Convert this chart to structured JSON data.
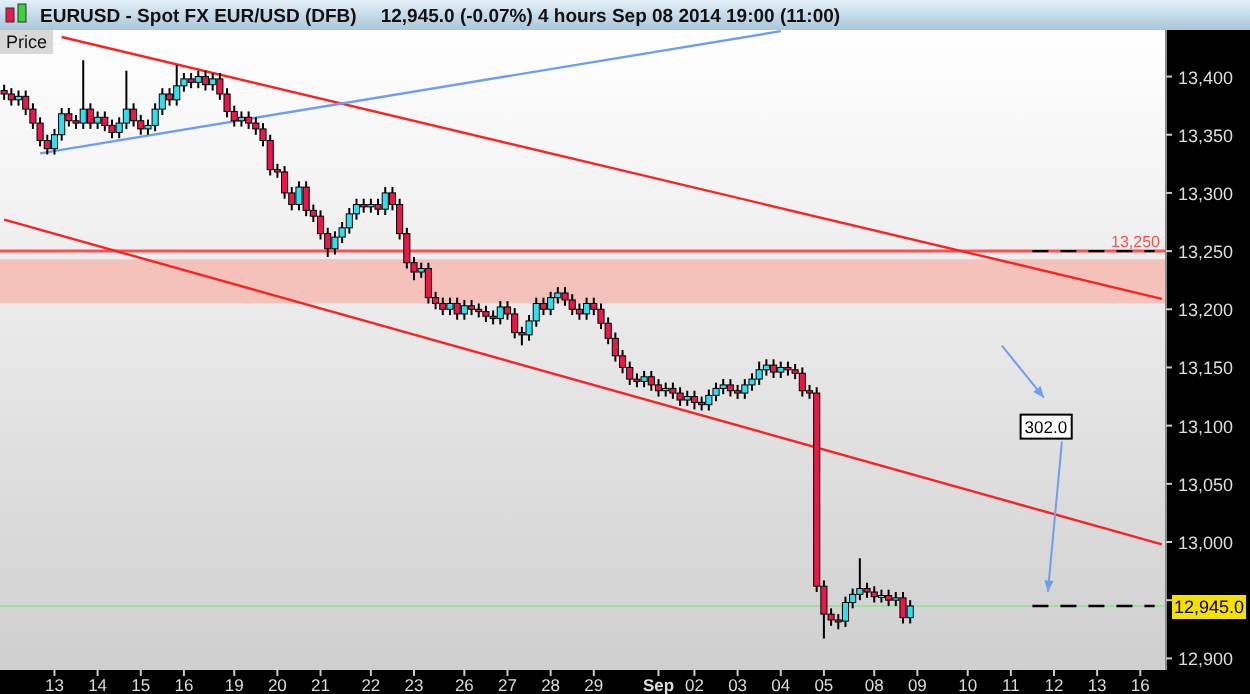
{
  "chart_data": {
    "type": "candlestick",
    "title": "EURUSD - Spot FX EUR/USD (DFB)",
    "subtitle": "12,945.0 (-0.07%)    4 hours   Sep 08 2014 19:00 (11:00)",
    "categories": [
      null,
      null,
      null,
      null,
      null,
      null,
      null,
      "13",
      null,
      null,
      null,
      null,
      null,
      "14",
      null,
      null,
      null,
      null,
      null,
      "15",
      null,
      null,
      null,
      null,
      null,
      "16",
      null,
      null,
      null,
      null,
      null,
      null,
      "19",
      null,
      null,
      null,
      null,
      null,
      "20",
      null,
      null,
      null,
      null,
      null,
      "21",
      null,
      null,
      null,
      null,
      null,
      null,
      "22",
      null,
      null,
      null,
      null,
      null,
      "23",
      null,
      null,
      null,
      null,
      null,
      null,
      "26",
      null,
      null,
      null,
      null,
      null,
      "27",
      null,
      null,
      null,
      null,
      null,
      "28",
      null,
      null,
      null,
      null,
      null,
      "29",
      null,
      null,
      null,
      null,
      null,
      null,
      null,
      null,
      "Sep",
      null,
      null,
      null,
      null,
      "02",
      null,
      null,
      null,
      null,
      null,
      "03",
      null,
      null,
      null,
      null,
      null,
      "04",
      null,
      null,
      null,
      null,
      null,
      "05",
      null,
      null,
      null,
      null,
      null,
      null,
      "08",
      null,
      null,
      null,
      null,
      null,
      "09",
      null,
      null,
      null,
      null,
      null,
      null,
      "10",
      null,
      null,
      null,
      null,
      null,
      "11",
      null,
      null,
      null,
      null,
      null,
      "12",
      null,
      null,
      null,
      null,
      null,
      "13",
      null,
      null,
      null,
      null,
      null,
      "16",
      null,
      null,
      null
    ],
    "ohlc": [
      [
        13388,
        13393,
        13380,
        13385
      ],
      [
        13385,
        13390,
        13375,
        13380
      ],
      [
        13380,
        13388,
        13375,
        13383
      ],
      [
        13383,
        13388,
        13367,
        13372
      ],
      [
        13372,
        13377,
        13355,
        13360
      ],
      [
        13360,
        13365,
        13340,
        13345
      ],
      [
        13345,
        13350,
        13333,
        13338
      ],
      [
        13338,
        13355,
        13333,
        13350
      ],
      [
        13350,
        13373,
        13345,
        13368
      ],
      [
        13368,
        13373,
        13357,
        13362
      ],
      [
        13362,
        13367,
        13355,
        13360
      ],
      [
        13360,
        13414,
        13355,
        13372
      ],
      [
        13372,
        13377,
        13355,
        13360
      ],
      [
        13360,
        13370,
        13355,
        13365
      ],
      [
        13365,
        13370,
        13353,
        13358
      ],
      [
        13358,
        13363,
        13347,
        13352
      ],
      [
        13352,
        13365,
        13347,
        13360
      ],
      [
        13360,
        13405,
        13355,
        13372
      ],
      [
        13372,
        13377,
        13357,
        13362
      ],
      [
        13362,
        13367,
        13350,
        13355
      ],
      [
        13355,
        13363,
        13350,
        13358
      ],
      [
        13358,
        13377,
        13353,
        13372
      ],
      [
        13372,
        13390,
        13367,
        13385
      ],
      [
        13385,
        13390,
        13375,
        13380
      ],
      [
        13380,
        13410,
        13375,
        13392
      ],
      [
        13392,
        13403,
        13387,
        13398
      ],
      [
        13398,
        13403,
        13390,
        13395
      ],
      [
        13395,
        13405,
        13390,
        13400
      ],
      [
        13400,
        13405,
        13388,
        13393
      ],
      [
        13393,
        13403,
        13388,
        13398
      ],
      [
        13398,
        13403,
        13380,
        13385
      ],
      [
        13385,
        13390,
        13365,
        13370
      ],
      [
        13370,
        13375,
        13357,
        13362
      ],
      [
        13362,
        13370,
        13357,
        13365
      ],
      [
        13365,
        13370,
        13355,
        13360
      ],
      [
        13360,
        13365,
        13350,
        13355
      ],
      [
        13355,
        13360,
        13340,
        13345
      ],
      [
        13345,
        13350,
        13315,
        13320
      ],
      [
        13320,
        13325,
        13313,
        13318
      ],
      [
        13318,
        13323,
        13295,
        13300
      ],
      [
        13300,
        13305,
        13285,
        13290
      ],
      [
        13290,
        13310,
        13285,
        13305
      ],
      [
        13305,
        13310,
        13280,
        13285
      ],
      [
        13285,
        13290,
        13275,
        13280
      ],
      [
        13280,
        13285,
        13260,
        13265
      ],
      [
        13265,
        13270,
        13245,
        13252
      ],
      [
        13252,
        13267,
        13247,
        13262
      ],
      [
        13262,
        13275,
        13257,
        13270
      ],
      [
        13270,
        13287,
        13265,
        13282
      ],
      [
        13282,
        13295,
        13277,
        13290
      ],
      [
        13290,
        13295,
        13283,
        13288
      ],
      [
        13288,
        13295,
        13283,
        13290
      ],
      [
        13290,
        13295,
        13281,
        13286
      ],
      [
        13286,
        13305,
        13281,
        13300
      ],
      [
        13300,
        13305,
        13285,
        13290
      ],
      [
        13290,
        13295,
        13260,
        13265
      ],
      [
        13265,
        13270,
        13235,
        13240
      ],
      [
        13240,
        13245,
        13225,
        13232
      ],
      [
        13232,
        13240,
        13227,
        13235
      ],
      [
        13235,
        13240,
        13205,
        13210
      ],
      [
        13210,
        13215,
        13200,
        13205
      ],
      [
        13205,
        13210,
        13195,
        13200
      ],
      [
        13200,
        13210,
        13195,
        13205
      ],
      [
        13205,
        13210,
        13191,
        13196
      ],
      [
        13196,
        13208,
        13191,
        13203
      ],
      [
        13203,
        13208,
        13195,
        13200
      ],
      [
        13200,
        13205,
        13193,
        13198
      ],
      [
        13198,
        13203,
        13189,
        13194
      ],
      [
        13194,
        13199,
        13187,
        13192
      ],
      [
        13192,
        13207,
        13187,
        13202
      ],
      [
        13202,
        13207,
        13191,
        13196
      ],
      [
        13196,
        13201,
        13175,
        13180
      ],
      [
        13180,
        13185,
        13169,
        13178
      ],
      [
        13178,
        13195,
        13173,
        13190
      ],
      [
        13190,
        13210,
        13185,
        13205
      ],
      [
        13205,
        13210,
        13195,
        13200
      ],
      [
        13200,
        13215,
        13195,
        13210
      ],
      [
        13210,
        13219,
        13205,
        13214
      ],
      [
        13214,
        13219,
        13203,
        13208
      ],
      [
        13208,
        13213,
        13195,
        13200
      ],
      [
        13200,
        13205,
        13191,
        13196
      ],
      [
        13196,
        13210,
        13191,
        13205
      ],
      [
        13205,
        13210,
        13195,
        13200
      ],
      [
        13200,
        13205,
        13183,
        13188
      ],
      [
        13188,
        13193,
        13170,
        13175
      ],
      [
        13175,
        13180,
        13155,
        13160
      ],
      [
        13160,
        13165,
        13145,
        13150
      ],
      [
        13150,
        13155,
        13135,
        13140
      ],
      [
        13140,
        13145,
        13133,
        13138
      ],
      [
        13138,
        13147,
        13133,
        13142
      ],
      [
        13142,
        13147,
        13130,
        13135
      ],
      [
        13135,
        13140,
        13125,
        13130
      ],
      [
        13130,
        13137,
        13125,
        13132
      ],
      [
        13132,
        13137,
        13123,
        13128
      ],
      [
        13128,
        13133,
        13117,
        13122
      ],
      [
        13122,
        13130,
        13117,
        13125
      ],
      [
        13125,
        13130,
        13114,
        13120
      ],
      [
        13120,
        13125,
        13113,
        13118
      ],
      [
        13118,
        13131,
        13113,
        13126
      ],
      [
        13126,
        13137,
        13121,
        13132
      ],
      [
        13132,
        13140,
        13127,
        13135
      ],
      [
        13135,
        13140,
        13125,
        13130
      ],
      [
        13130,
        13135,
        13123,
        13128
      ],
      [
        13128,
        13140,
        13123,
        13135
      ],
      [
        13135,
        13145,
        13130,
        13140
      ],
      [
        13140,
        13155,
        13135,
        13148
      ],
      [
        13148,
        13157,
        13143,
        13152
      ],
      [
        13152,
        13157,
        13141,
        13146
      ],
      [
        13146,
        13155,
        13141,
        13150
      ],
      [
        13150,
        13155,
        13143,
        13148
      ],
      [
        13148,
        13153,
        13140,
        13145
      ],
      [
        13145,
        13150,
        13125,
        13130
      ],
      [
        13130,
        13135,
        13123,
        13128
      ],
      [
        13128,
        13133,
        12957,
        12962
      ],
      [
        12962,
        12967,
        12917,
        12938
      ],
      [
        12938,
        12943,
        12928,
        12933
      ],
      [
        12933,
        12938,
        12925,
        12932
      ],
      [
        12932,
        12953,
        12927,
        12948
      ],
      [
        12948,
        12960,
        12943,
        12955
      ],
      [
        12955,
        12986,
        12950,
        12960
      ],
      [
        12960,
        12965,
        12952,
        12957
      ],
      [
        12957,
        12962,
        12948,
        12953
      ],
      [
        12953,
        12959,
        12948,
        12954
      ],
      [
        12954,
        12959,
        12945,
        12950
      ],
      [
        12950,
        12957,
        12945,
        12952
      ],
      [
        12952,
        12957,
        12930,
        12935
      ],
      [
        12935,
        12950,
        12930,
        12945
      ],
      null,
      null,
      null,
      null,
      null,
      null,
      null,
      null,
      null,
      null,
      null,
      null,
      null,
      null,
      null,
      null,
      null,
      null,
      null,
      null,
      null,
      null,
      null,
      null,
      null,
      null,
      null,
      null,
      null,
      null,
      null,
      null,
      null,
      null,
      null
    ],
    "series": [
      {
        "type": "line",
        "color": "#ff2020",
        "values": [
          null,
          null,
          null,
          null,
          null,
          null,
          null,
          null,
          13434,
          null,
          null,
          null,
          null,
          null,
          null,
          null,
          null,
          null,
          null,
          null,
          null,
          null,
          null,
          null,
          null,
          null,
          null,
          null,
          null,
          null,
          null,
          null,
          null,
          null,
          null,
          null,
          null,
          null,
          null,
          null,
          null,
          null,
          null,
          null,
          null,
          null,
          null,
          null,
          null,
          null,
          null,
          null,
          null,
          null,
          null,
          null,
          null,
          null,
          null,
          null,
          null,
          null,
          null,
          null,
          null,
          null,
          null,
          null,
          null,
          null,
          null,
          null,
          null,
          null,
          null,
          null,
          null,
          null,
          null,
          null,
          null,
          null,
          null,
          null,
          null,
          null,
          null,
          null,
          null,
          null,
          null,
          null,
          null,
          null,
          null,
          null,
          null,
          null,
          null,
          null,
          null,
          null,
          null,
          null,
          null,
          null,
          null,
          null,
          null,
          null,
          null,
          null,
          null,
          null,
          null,
          null,
          null,
          null,
          null,
          null,
          null,
          null,
          null,
          null,
          null,
          null,
          null,
          null,
          null,
          null,
          null,
          null,
          null,
          null,
          null,
          null,
          null,
          null,
          null,
          null,
          null,
          null,
          null,
          null,
          null,
          null,
          null,
          null,
          null,
          null,
          null,
          null,
          null,
          null,
          null,
          null,
          null,
          null,
          null,
          null,
          null,
          13209
        ]
      },
      {
        "type": "line",
        "color": "#ff2020",
        "values": [
          13277,
          null,
          null,
          null,
          null,
          null,
          null,
          null,
          null,
          null,
          null,
          null,
          null,
          null,
          null,
          null,
          null,
          null,
          null,
          null,
          null,
          null,
          null,
          null,
          null,
          null,
          null,
          null,
          null,
          null,
          null,
          null,
          null,
          null,
          null,
          null,
          null,
          null,
          null,
          null,
          null,
          null,
          null,
          null,
          null,
          null,
          null,
          null,
          null,
          null,
          null,
          null,
          null,
          null,
          null,
          null,
          null,
          null,
          null,
          null,
          null,
          null,
          null,
          null,
          null,
          null,
          null,
          null,
          null,
          null,
          null,
          null,
          null,
          null,
          null,
          null,
          null,
          null,
          null,
          null,
          null,
          null,
          null,
          null,
          null,
          null,
          null,
          null,
          null,
          null,
          null,
          null,
          null,
          null,
          null,
          null,
          null,
          null,
          null,
          null,
          null,
          null,
          null,
          null,
          null,
          null,
          null,
          null,
          null,
          null,
          null,
          null,
          null,
          null,
          null,
          null,
          null,
          null,
          null,
          null,
          null,
          null,
          null,
          null,
          null,
          null,
          null,
          null,
          null,
          null,
          null,
          null,
          null,
          null,
          null,
          null,
          null,
          null,
          null,
          null,
          null,
          null,
          null,
          null,
          null,
          null,
          null,
          null,
          null,
          null,
          null,
          null,
          null,
          null,
          null,
          null,
          null,
          null,
          null,
          null,
          null,
          12998
        ]
      },
      {
        "type": "line",
        "color": "#6f9ef0",
        "values": [
          null,
          null,
          null,
          null,
          null,
          13334,
          null,
          null,
          null,
          null,
          null,
          null,
          null,
          null,
          null,
          null,
          null,
          null,
          null,
          null,
          null,
          null,
          null,
          null,
          null,
          null,
          null,
          null,
          null,
          null,
          null,
          null,
          null,
          null,
          null,
          null,
          null,
          null,
          null,
          null,
          null,
          null,
          null,
          null,
          null,
          null,
          null,
          null,
          null,
          null,
          null,
          null,
          null,
          null,
          null,
          null,
          null,
          null,
          null,
          null,
          null,
          null,
          null,
          null,
          null,
          null,
          null,
          null,
          null,
          null,
          null,
          null,
          null,
          null,
          null,
          null,
          null,
          null,
          null,
          null,
          null,
          null,
          null,
          null,
          null,
          null,
          null,
          null,
          null,
          null,
          null,
          null,
          null,
          null,
          null,
          null,
          null,
          null,
          null,
          null,
          null,
          null,
          null,
          null,
          null,
          null,
          null,
          null,
          13439,
          null,
          null,
          null,
          null,
          null,
          null,
          null,
          null,
          null,
          null,
          null,
          null,
          null,
          null,
          null,
          null,
          null,
          null,
          null,
          null,
          null,
          null,
          null,
          null,
          null,
          null,
          null,
          null,
          null,
          null,
          null,
          null,
          null,
          null,
          null,
          null,
          null,
          null,
          null,
          null,
          null,
          null,
          null,
          null,
          null,
          null,
          null,
          null,
          null,
          null,
          null,
          null,
          null
        ]
      },
      {
        "type": "line",
        "color": "#000000",
        "line_style": "dashed",
        "values": [
          null,
          null,
          null,
          null,
          null,
          null,
          null,
          null,
          null,
          null,
          null,
          null,
          null,
          null,
          null,
          null,
          null,
          null,
          null,
          null,
          null,
          null,
          null,
          null,
          null,
          null,
          null,
          null,
          null,
          null,
          null,
          null,
          null,
          null,
          null,
          null,
          null,
          null,
          null,
          null,
          null,
          null,
          null,
          null,
          null,
          null,
          null,
          null,
          null,
          null,
          null,
          null,
          null,
          null,
          null,
          null,
          null,
          null,
          null,
          null,
          null,
          null,
          null,
          null,
          null,
          null,
          null,
          null,
          null,
          null,
          null,
          null,
          null,
          null,
          null,
          null,
          null,
          null,
          null,
          null,
          null,
          null,
          null,
          null,
          null,
          null,
          null,
          null,
          null,
          null,
          null,
          null,
          null,
          null,
          null,
          null,
          null,
          null,
          null,
          null,
          null,
          null,
          null,
          null,
          null,
          null,
          null,
          null,
          null,
          null,
          null,
          null,
          null,
          null,
          null,
          null,
          null,
          null,
          null,
          null,
          null,
          null,
          null,
          null,
          null,
          null,
          null,
          null,
          null,
          null,
          null,
          null,
          null,
          null,
          null,
          null,
          null,
          null,
          null,
          null,
          null,
          null,
          null,
          13250,
          null,
          null,
          null,
          null,
          null,
          null,
          null,
          null,
          null,
          null,
          null,
          null,
          null,
          null,
          null,
          null,
          13250,
          null
        ]
      },
      {
        "type": "line",
        "color": "#000000",
        "line_style": "dashed",
        "values": [
          null,
          null,
          null,
          null,
          null,
          null,
          null,
          null,
          null,
          null,
          null,
          null,
          null,
          null,
          null,
          null,
          null,
          null,
          null,
          null,
          null,
          null,
          null,
          null,
          null,
          null,
          null,
          null,
          null,
          null,
          null,
          null,
          null,
          null,
          null,
          null,
          null,
          null,
          null,
          null,
          null,
          null,
          null,
          null,
          null,
          null,
          null,
          null,
          null,
          null,
          null,
          null,
          null,
          null,
          null,
          null,
          null,
          null,
          null,
          null,
          null,
          null,
          null,
          null,
          null,
          null,
          null,
          null,
          null,
          null,
          null,
          null,
          null,
          null,
          null,
          null,
          null,
          null,
          null,
          null,
          null,
          null,
          null,
          null,
          null,
          null,
          null,
          null,
          null,
          null,
          null,
          null,
          null,
          null,
          null,
          null,
          null,
          null,
          null,
          null,
          null,
          null,
          null,
          null,
          null,
          null,
          null,
          null,
          null,
          null,
          null,
          null,
          null,
          null,
          null,
          null,
          null,
          null,
          null,
          null,
          null,
          null,
          null,
          null,
          null,
          null,
          null,
          null,
          null,
          null,
          null,
          null,
          null,
          null,
          null,
          null,
          null,
          null,
          null,
          null,
          null,
          null,
          null,
          12945,
          null,
          null,
          null,
          null,
          null,
          null,
          null,
          null,
          null,
          null,
          null,
          null,
          null,
          null,
          null,
          null,
          12945,
          null
        ]
      }
    ],
    "bands": [
      {
        "axis": "y",
        "from": 13205,
        "to": 13243,
        "color": "#f4c2ba"
      }
    ],
    "ref_lines": [
      {
        "axis": "y",
        "value": 13250,
        "label": "13,250",
        "color": "#ff5050"
      },
      {
        "axis": "y",
        "value": 12945,
        "label": "12,945.0",
        "color": "#9be09b"
      }
    ],
    "annotations": [
      "Price",
      {
        "text": "302.0",
        "y": 13100
      }
    ],
    "ylim": [
      12890,
      13440
    ],
    "yticks": [
      {
        "value": 12900,
        "label": "12,900"
      },
      {
        "value": 12950,
        "label": null
      },
      {
        "value": 13000,
        "label": "13,000"
      },
      {
        "value": 13050,
        "label": "13,050"
      },
      {
        "value": 13100,
        "label": "13,100"
      },
      {
        "value": 13150,
        "label": "13,150"
      },
      {
        "value": 13200,
        "label": "13,200"
      },
      {
        "value": 13250,
        "label": "13,250"
      },
      {
        "value": 13300,
        "label": "13,300"
      },
      {
        "value": 13350,
        "label": "13,350"
      },
      {
        "value": 13400,
        "label": "13,400"
      }
    ]
  }
}
